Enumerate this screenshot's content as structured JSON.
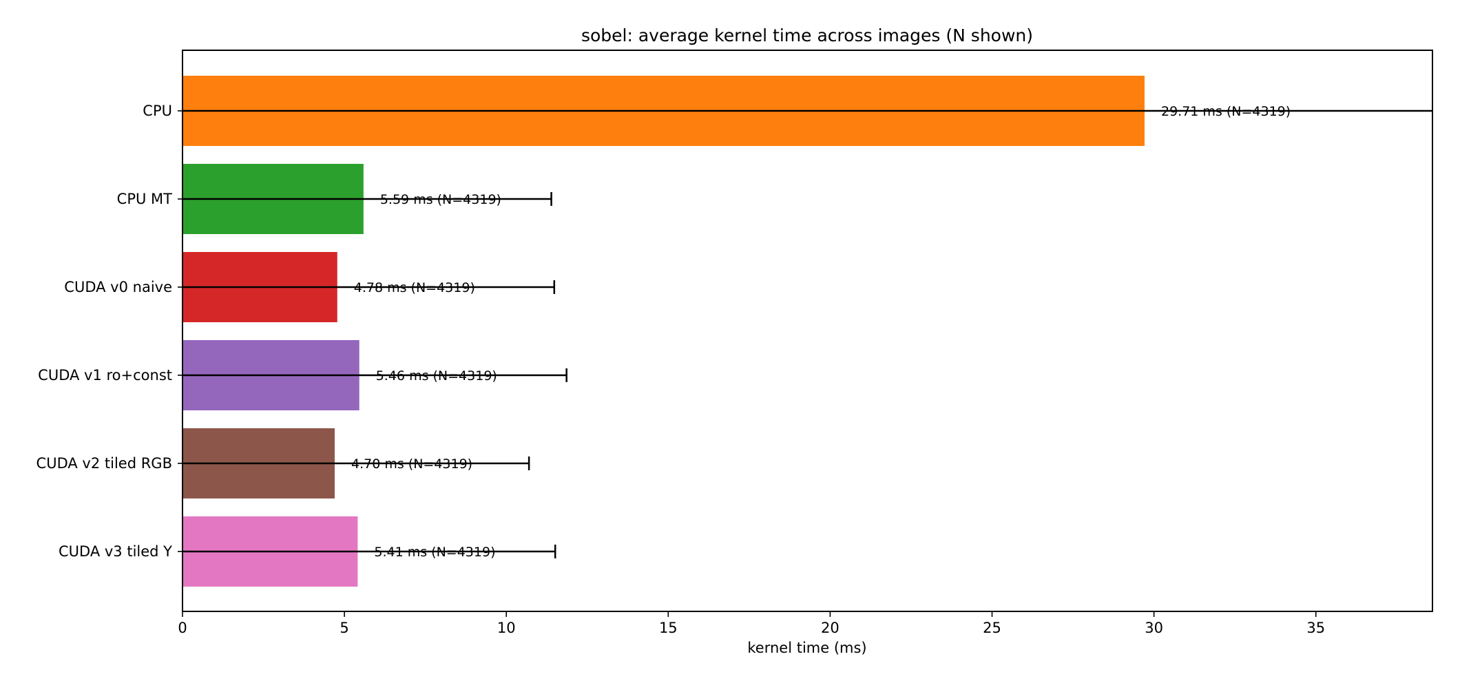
{
  "chart_data": {
    "type": "bar",
    "orientation": "horizontal",
    "title": "sobel: average kernel time across images (N shown)",
    "xlabel": "kernel time (ms)",
    "ylabel": "",
    "xlim": [
      0,
      38.6
    ],
    "xticks": [
      0,
      5,
      10,
      15,
      20,
      25,
      30,
      35
    ],
    "grid": false,
    "legend": "none",
    "categories": [
      "CPU",
      "CPU MT",
      "CUDA v0 naive",
      "CUDA v1 ro+const",
      "CUDA v2 tiled RGB",
      "CUDA v3 tiled Y"
    ],
    "values": [
      29.71,
      5.59,
      4.78,
      5.46,
      4.7,
      5.41
    ],
    "error": [
      null,
      5.8,
      6.7,
      6.4,
      6.0,
      6.1
    ],
    "error_truncated": [
      true,
      false,
      false,
      false,
      false,
      false
    ],
    "data_labels": [
      "29.71 ms  (N=4319)",
      "5.59 ms  (N=4319)",
      "4.78 ms  (N=4319)",
      "5.46 ms  (N=4319)",
      "4.70 ms  (N=4319)",
      "5.41 ms  (N=4319)"
    ],
    "colors": [
      "#ff7f0e",
      "#2ca02c",
      "#d62728",
      "#9467bd",
      "#8c564b",
      "#e377c2"
    ]
  }
}
